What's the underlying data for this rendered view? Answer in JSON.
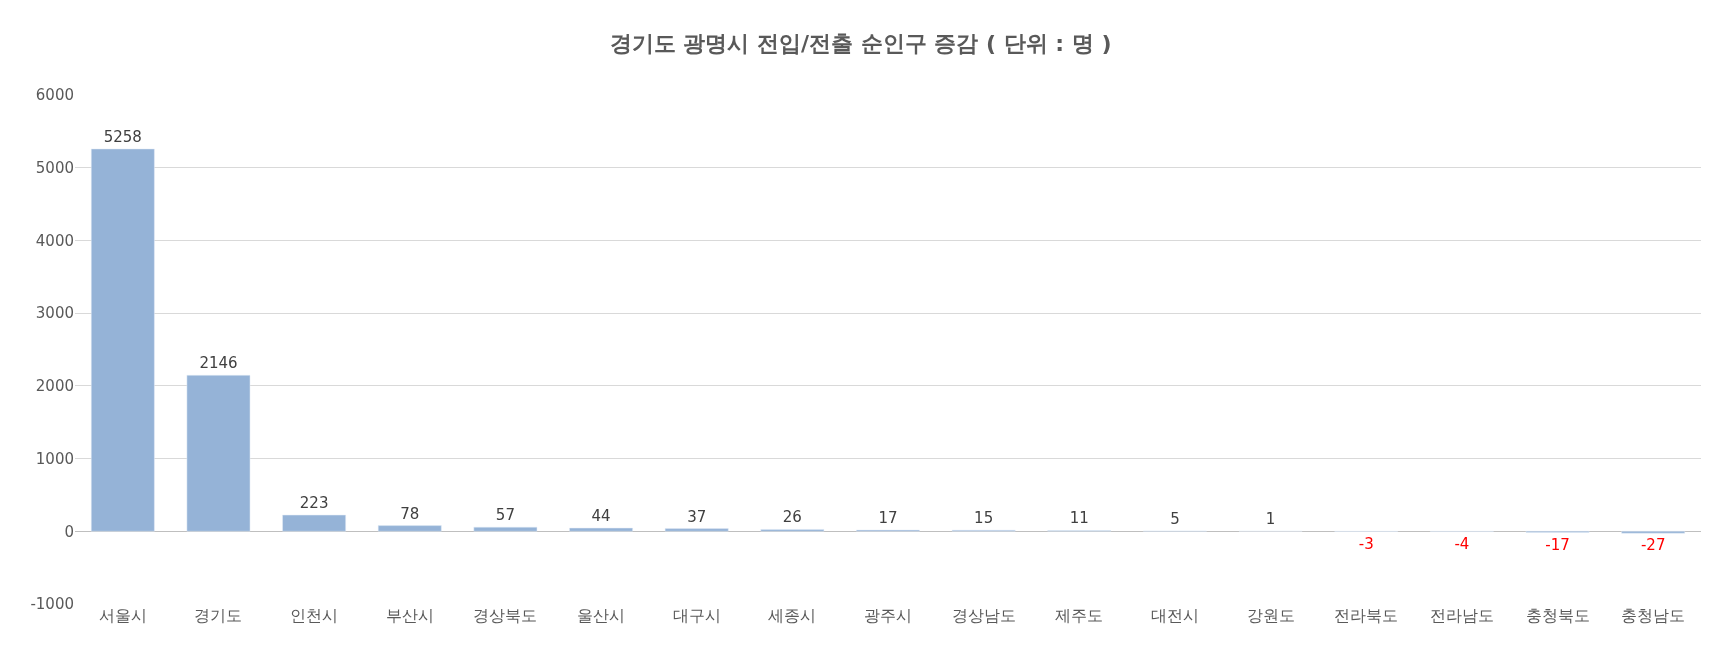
{
  "chart_data": {
    "type": "bar",
    "title": "경기도 광명시 전입/전출 순인구 증감 ( 단위 : 명 )",
    "categories": [
      "서울시",
      "경기도",
      "인천시",
      "부산시",
      "경상북도",
      "울산시",
      "대구시",
      "세종시",
      "광주시",
      "경상남도",
      "제주도",
      "대전시",
      "강원도",
      "전라북도",
      "전라남도",
      "충청북도",
      "충청남도"
    ],
    "values": [
      5258,
      2146,
      223,
      78,
      57,
      44,
      37,
      26,
      17,
      15,
      11,
      5,
      1,
      -3,
      -4,
      -17,
      -27
    ],
    "color": "#95b3d7",
    "data_labels": true,
    "ylim": [
      -1000,
      6000
    ],
    "yticks": [
      -1000,
      0,
      1000,
      2000,
      3000,
      4000,
      5000,
      6000
    ],
    "grid": "y",
    "legend": false
  }
}
